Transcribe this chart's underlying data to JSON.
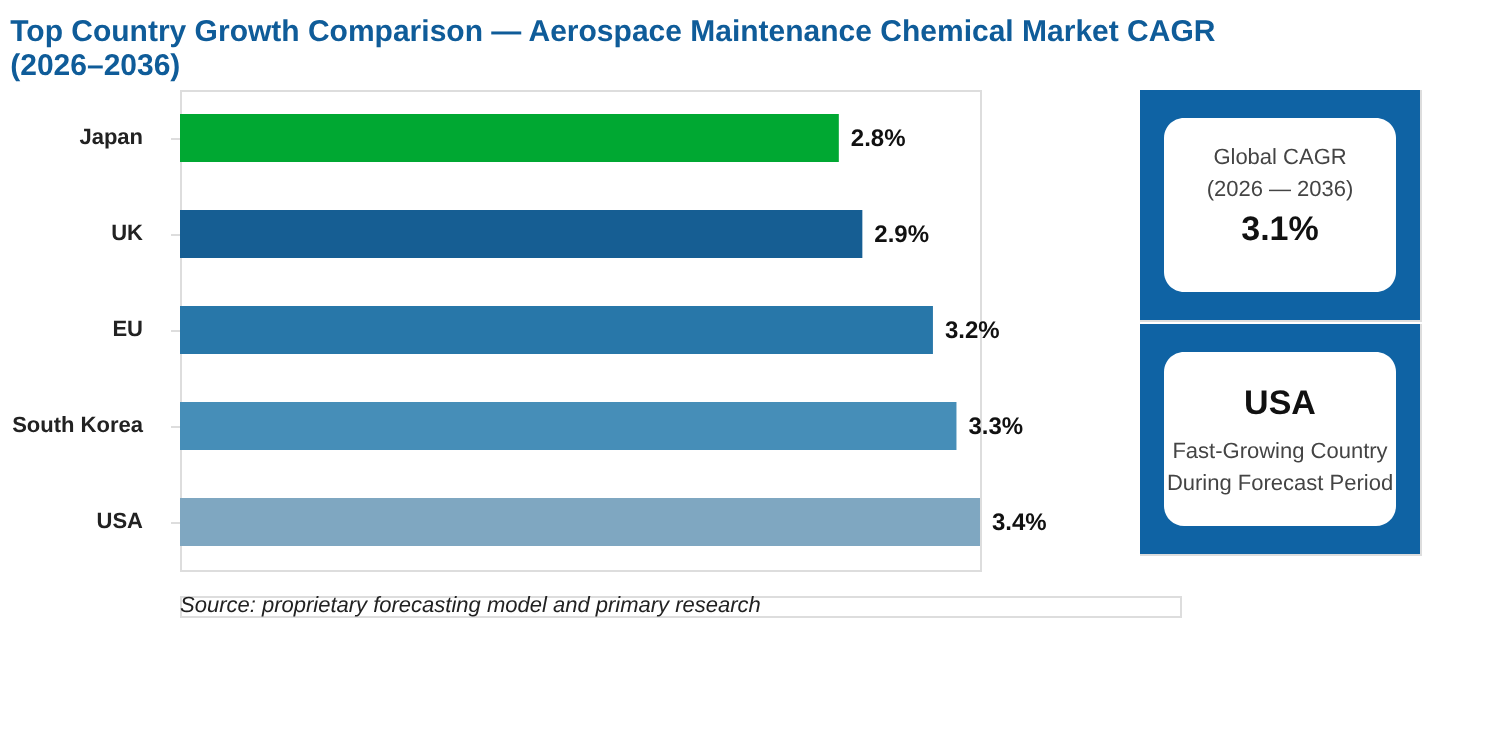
{
  "chart_data": [
    {
      "type": "bar",
      "orientation": "horizontal",
      "title": "Top Country Growth Comparison — Aerospace Maintenance Chemical Market CAGR (2026–2036)",
      "categories": [
        "Japan",
        "UK",
        "EU",
        "South Korea",
        "USA"
      ],
      "values": [
        2.8,
        2.9,
        3.2,
        3.3,
        3.4
      ],
      "value_labels": [
        "2.8%",
        "2.9%",
        "3.2%",
        "3.3%",
        "3.4%"
      ],
      "colors": [
        "#00a832",
        "#165e93",
        "#2877a9",
        "#468eb8",
        "#7fa7c1"
      ],
      "legend": false,
      "tick_labels": "y",
      "annotations": [
        "Source: proprietary forecasting model and primary research"
      ]
    },
    {
      "type": "other",
      "title": "3.1%",
      "annotations": [
        "Global CAGR",
        "(2026 — 2036)"
      ]
    },
    {
      "type": "other",
      "title": "USA",
      "annotations": [
        "Fast-Growing Country",
        "During Forecast Period"
      ]
    }
  ]
}
